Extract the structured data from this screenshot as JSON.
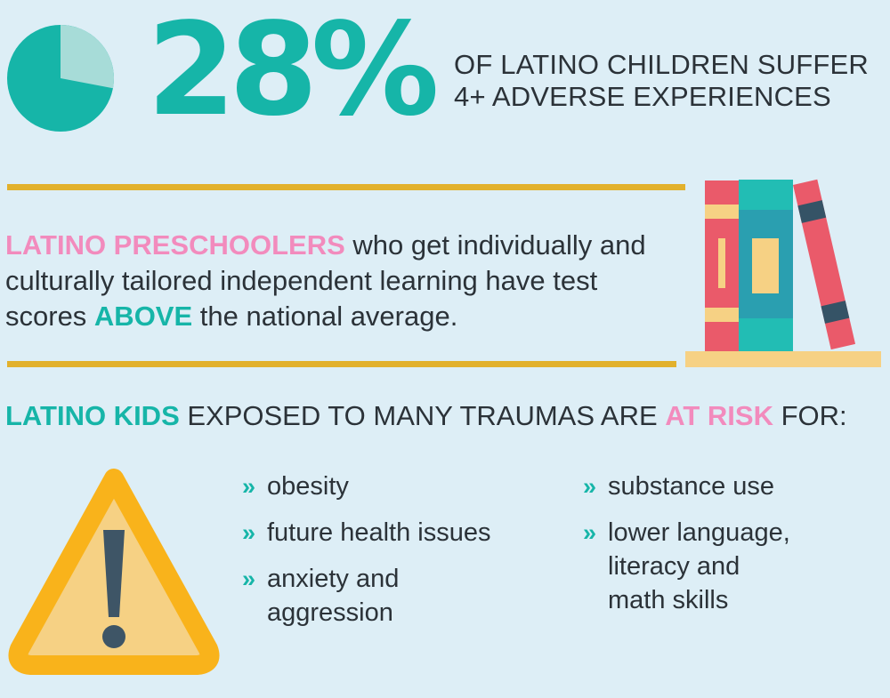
{
  "stat": {
    "value_percent": 28,
    "value_label": "28%",
    "text_line1": "OF LATINO CHILDREN SUFFER",
    "text_line2": "4+ ADVERSE EXPERIENCES"
  },
  "preschool": {
    "highlight": "LATINO PRESCHOOLERS",
    "text_part1": " who get individually and culturally tailored independent learning have test scores ",
    "emphasis": "ABOVE",
    "text_part2": " the national average."
  },
  "risk": {
    "heading_highlight": "LATINO KIDS",
    "heading_middle": " EXPOSED TO MANY TRAUMAS ARE ",
    "heading_emphasis": "AT RISK",
    "heading_end": " FOR:",
    "bullet_glyph": "»",
    "items_left": [
      {
        "line1": "obesity",
        "line2": ""
      },
      {
        "line1": "future health issues",
        "line2": ""
      },
      {
        "line1": "anxiety and",
        "line2": "aggression"
      }
    ],
    "items_right": [
      {
        "line1": "substance use",
        "line2": ""
      },
      {
        "line1": "lower language,",
        "line2": "literacy and",
        "line3": "math skills"
      }
    ]
  },
  "colors": {
    "background": "#ddeef6",
    "teal": "#16b5a8",
    "pink": "#f28bbd",
    "gold": "#e2b12c",
    "text": "#2b3238"
  },
  "icons": {
    "pie": "pie-chart-icon",
    "books": "books-icon",
    "warning": "warning-icon"
  }
}
